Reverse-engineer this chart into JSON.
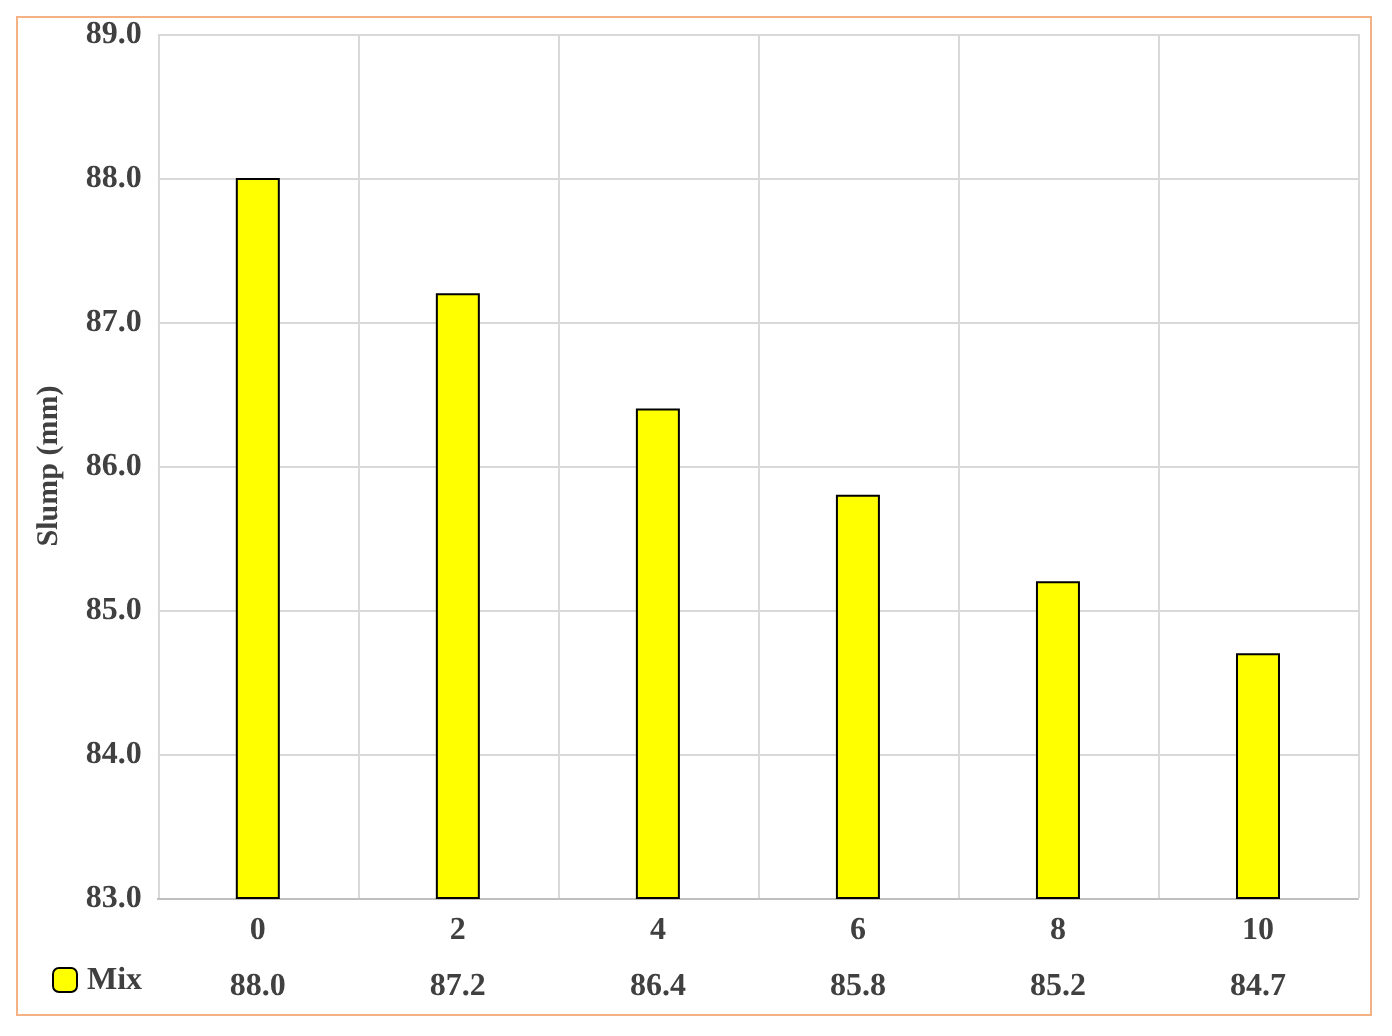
{
  "chart_data": {
    "type": "bar",
    "ylabel": "Slump (mm)",
    "categories": [
      "0",
      "2",
      "4",
      "6",
      "8",
      "10"
    ],
    "series": [
      {
        "name": "Mix",
        "color": "#ffff00",
        "values": [
          88.0,
          87.2,
          86.4,
          85.8,
          85.2,
          84.7
        ],
        "value_labels": [
          "88.0",
          "87.2",
          "86.4",
          "85.8",
          "85.2",
          "84.7"
        ]
      }
    ],
    "ylim": [
      83,
      89
    ],
    "yticks": [
      {
        "value": 83,
        "label": "83.0"
      },
      {
        "value": 84,
        "label": "84.0"
      },
      {
        "value": 85,
        "label": "85.0"
      },
      {
        "value": 86,
        "label": "86.0"
      },
      {
        "value": 87,
        "label": "87.0"
      },
      {
        "value": 88,
        "label": "88.0"
      },
      {
        "value": 89,
        "label": "89.0"
      }
    ],
    "grid": true,
    "legend": "bottom left"
  }
}
